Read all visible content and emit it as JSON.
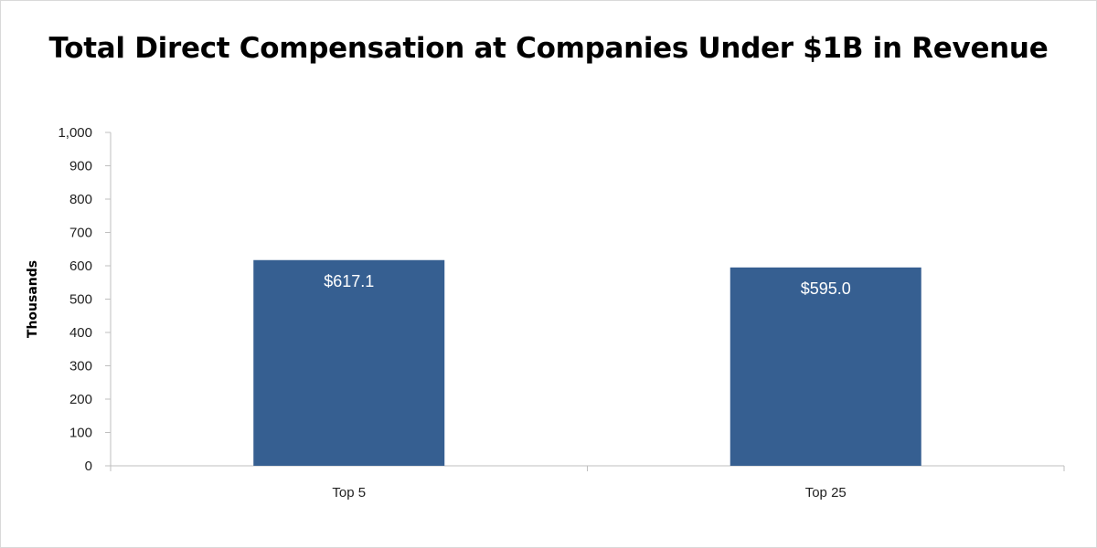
{
  "chart_data": {
    "type": "bar",
    "title": "Total Direct Compensation at Companies Under $1B in Revenue",
    "xlabel": "",
    "ylabel": "Thousands",
    "categories": [
      "Top 5",
      "Top 25"
    ],
    "values": [
      617.1,
      595.0
    ],
    "data_labels": [
      "$617.1",
      "$595.0"
    ],
    "ylim": [
      0,
      1000
    ],
    "yticks": [
      0,
      100,
      200,
      300,
      400,
      500,
      600,
      700,
      800,
      900,
      1000
    ],
    "ytick_labels": [
      "0",
      "100",
      "200",
      "300",
      "400",
      "500",
      "600",
      "700",
      "800",
      "900",
      "1,000"
    ],
    "grid": false,
    "legend": "none",
    "bar_color": "#365f91"
  }
}
